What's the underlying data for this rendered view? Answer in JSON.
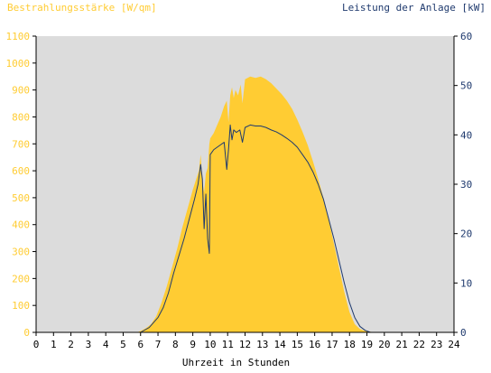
{
  "chart_data": {
    "type": "area",
    "xlabel": "Uhrzeit in Stunden",
    "ylabel_left": "Bestrahlungsstärke [W/qm]",
    "ylabel_right": "Leistung der Anlage [kW]",
    "x_ticks": [
      0,
      1,
      2,
      3,
      4,
      5,
      6,
      7,
      8,
      9,
      10,
      11,
      12,
      13,
      14,
      15,
      16,
      17,
      18,
      19,
      20,
      21,
      22,
      23,
      24
    ],
    "y_left_ticks": [
      0,
      100,
      200,
      300,
      400,
      500,
      600,
      700,
      800,
      900,
      1000,
      1100
    ],
    "y_right_ticks": [
      0,
      10,
      20,
      30,
      40,
      50,
      60
    ],
    "xlim": [
      0,
      24
    ],
    "ylim_left": [
      0,
      1100
    ],
    "ylim_right": [
      0,
      60
    ],
    "grid": false,
    "colors": {
      "irradiance": "#ffcc33",
      "power": "#1f3a6e",
      "left_axis_text": "#ffcc33",
      "right_axis_text": "#1f3a6e",
      "plot_background": "#dcdcdc"
    },
    "series": [
      {
        "name": "Bestrahlungsstärke [W/qm]",
        "axis": "left",
        "style": "area",
        "points": [
          [
            0,
            0
          ],
          [
            5.8,
            0
          ],
          [
            6.0,
            5
          ],
          [
            6.3,
            15
          ],
          [
            6.6,
            30
          ],
          [
            6.9,
            60
          ],
          [
            7.2,
            110
          ],
          [
            7.5,
            170
          ],
          [
            7.8,
            240
          ],
          [
            8.1,
            310
          ],
          [
            8.4,
            390
          ],
          [
            8.7,
            460
          ],
          [
            9.0,
            530
          ],
          [
            9.2,
            570
          ],
          [
            9.35,
            600
          ],
          [
            9.45,
            660
          ],
          [
            9.55,
            560
          ],
          [
            9.65,
            520
          ],
          [
            9.75,
            590
          ],
          [
            9.85,
            610
          ],
          [
            9.95,
            700
          ],
          [
            10.0,
            720
          ],
          [
            10.2,
            740
          ],
          [
            10.4,
            770
          ],
          [
            10.6,
            800
          ],
          [
            10.8,
            840
          ],
          [
            10.95,
            860
          ],
          [
            11.05,
            780
          ],
          [
            11.15,
            880
          ],
          [
            11.25,
            910
          ],
          [
            11.35,
            870
          ],
          [
            11.45,
            900
          ],
          [
            11.6,
            880
          ],
          [
            11.75,
            920
          ],
          [
            11.85,
            850
          ],
          [
            12.0,
            940
          ],
          [
            12.3,
            950
          ],
          [
            12.6,
            945
          ],
          [
            12.9,
            950
          ],
          [
            13.2,
            940
          ],
          [
            13.5,
            925
          ],
          [
            13.8,
            905
          ],
          [
            14.1,
            885
          ],
          [
            14.4,
            860
          ],
          [
            14.7,
            830
          ],
          [
            15.0,
            790
          ],
          [
            15.3,
            745
          ],
          [
            15.6,
            695
          ],
          [
            15.9,
            635
          ],
          [
            16.2,
            570
          ],
          [
            16.5,
            500
          ],
          [
            16.8,
            420
          ],
          [
            17.1,
            330
          ],
          [
            17.4,
            240
          ],
          [
            17.7,
            150
          ],
          [
            18.0,
            75
          ],
          [
            18.3,
            30
          ],
          [
            18.6,
            12
          ],
          [
            18.9,
            5
          ],
          [
            19.2,
            2
          ],
          [
            19.5,
            0
          ],
          [
            24,
            0
          ]
        ]
      },
      {
        "name": "Leistung der Anlage [kW]",
        "axis": "right",
        "style": "line",
        "points": [
          [
            0,
            0
          ],
          [
            6.0,
            0
          ],
          [
            6.5,
            1
          ],
          [
            7.0,
            3
          ],
          [
            7.3,
            5
          ],
          [
            7.6,
            8
          ],
          [
            7.9,
            12
          ],
          [
            8.2,
            15.5
          ],
          [
            8.5,
            19
          ],
          [
            8.8,
            23
          ],
          [
            9.1,
            27
          ],
          [
            9.3,
            30
          ],
          [
            9.45,
            34
          ],
          [
            9.55,
            31
          ],
          [
            9.65,
            21
          ],
          [
            9.75,
            28
          ],
          [
            9.85,
            19
          ],
          [
            9.95,
            16
          ],
          [
            10.0,
            36
          ],
          [
            10.2,
            37
          ],
          [
            10.4,
            37.5
          ],
          [
            10.6,
            38
          ],
          [
            10.8,
            38.5
          ],
          [
            10.95,
            33
          ],
          [
            11.05,
            37
          ],
          [
            11.15,
            42
          ],
          [
            11.25,
            39
          ],
          [
            11.35,
            41
          ],
          [
            11.5,
            40.5
          ],
          [
            11.7,
            41
          ],
          [
            11.85,
            38.5
          ],
          [
            12.0,
            41.5
          ],
          [
            12.3,
            42
          ],
          [
            12.6,
            41.8
          ],
          [
            12.9,
            41.8
          ],
          [
            13.2,
            41.5
          ],
          [
            13.5,
            41
          ],
          [
            13.8,
            40.6
          ],
          [
            14.1,
            40
          ],
          [
            14.4,
            39.3
          ],
          [
            14.7,
            38.5
          ],
          [
            15.0,
            37.5
          ],
          [
            15.3,
            36
          ],
          [
            15.6,
            34.5
          ],
          [
            15.9,
            32.5
          ],
          [
            16.2,
            30
          ],
          [
            16.5,
            27
          ],
          [
            16.8,
            23
          ],
          [
            17.1,
            19
          ],
          [
            17.4,
            14.5
          ],
          [
            17.7,
            10
          ],
          [
            18.0,
            6
          ],
          [
            18.3,
            3
          ],
          [
            18.6,
            1.2
          ],
          [
            18.9,
            0.4
          ],
          [
            19.2,
            0
          ],
          [
            24,
            0
          ]
        ]
      }
    ]
  }
}
